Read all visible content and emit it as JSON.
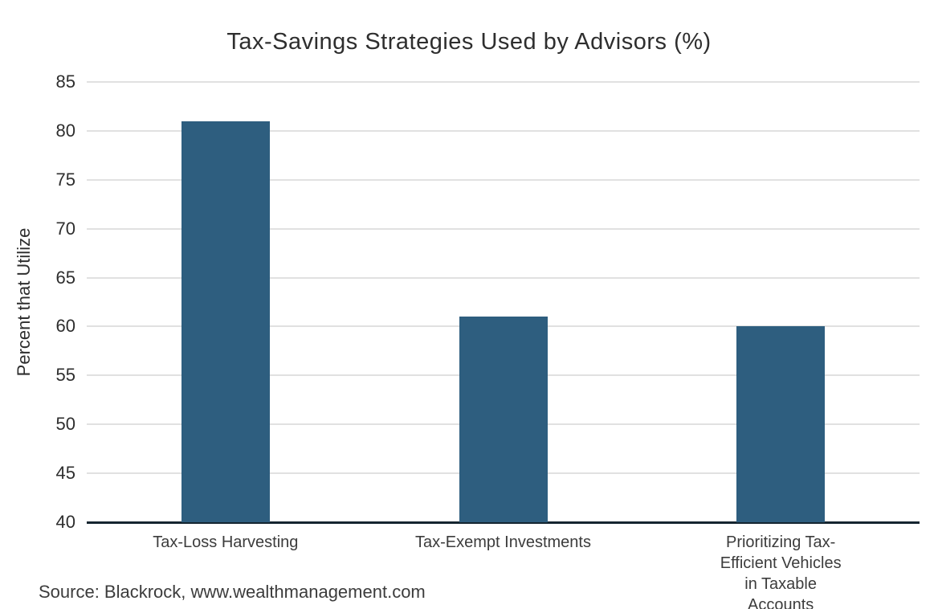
{
  "page": {
    "background_color": "#ffffff"
  },
  "chart_data": {
    "type": "bar",
    "title": "Tax-Savings Strategies Used by Advisors (%)",
    "xlabel": "",
    "ylabel": "Percent that Utilize",
    "categories": [
      "Tax-Loss Harvesting",
      "Tax-Exempt Investments",
      "Prioritizing Tax-Efficient Vehicles\nin Taxable Accounts"
    ],
    "values": [
      81,
      61,
      60
    ],
    "ylim": [
      40,
      85
    ],
    "yticks": [
      85,
      80,
      75,
      70,
      65,
      60,
      55,
      50,
      45,
      40
    ],
    "grid": true,
    "legend": "none",
    "bar_color": "#2e5e7f",
    "gridline_color": "#e1e1e1",
    "axis_color": "#152530",
    "title_color": "#2e2e2e",
    "label_color": "#3c3c3c"
  },
  "source": {
    "label": "Source: Blackrock, www.wealthmanagement.com"
  }
}
